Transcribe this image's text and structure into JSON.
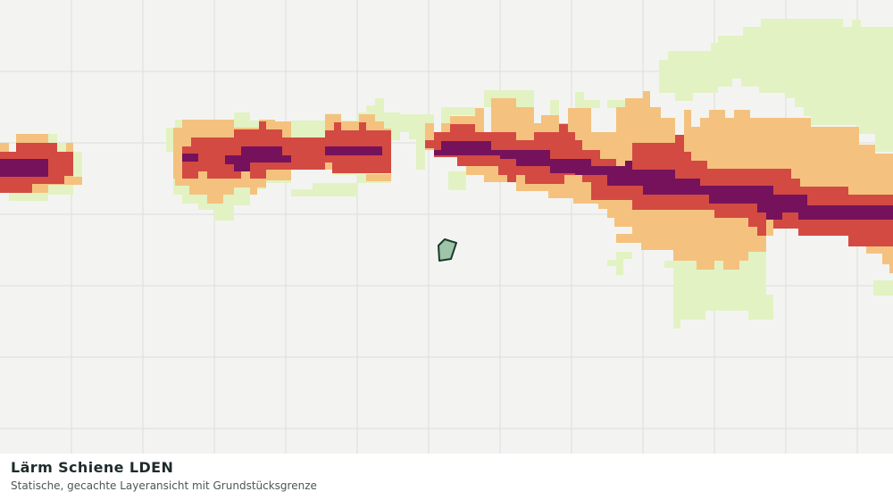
{
  "map": {
    "layer_title": "Lärm Schiene LDEN",
    "layer_subtitle": "Statische, gecachte Layeransicht mit Grundstücksgrenze",
    "colors": {
      "background": "#f3f4f2",
      "grid": "#dcdedb",
      "band_lowest": "#e3f2c2",
      "band_low": "#f4c27e",
      "band_high": "#d34a42",
      "band_highest": "#75125b",
      "parcel_fill": "#9fc4a8",
      "parcel_stroke": "#1b3a2a"
    },
    "legend_bands": [
      "lowest",
      "low",
      "high",
      "highest"
    ],
    "parcel_label": "Grundstücksgrenze"
  }
}
